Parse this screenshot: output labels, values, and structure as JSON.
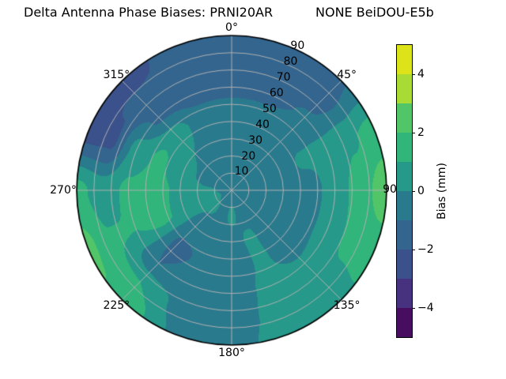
{
  "title": {
    "left": "Delta Antenna Phase Biases: PRNI20AR",
    "right": "NONE BeiDOU-E5b"
  },
  "chart_data": {
    "type": "polar_filled_contour",
    "title": "Delta Antenna Phase Biases: PRNI20AR        NONE BeiDOU-E5b",
    "description_visible": "Polar sky map of antenna phase bias; azimuth clockwise from 0° at top, radial axis 0–90 with gridlines every 10 and spokes every 45°.",
    "levels": [
      -5,
      -4,
      -3,
      -2,
      -1,
      0,
      1,
      2,
      3,
      4,
      5
    ],
    "band_colors_hex": [
      "#470d60",
      "#46327e",
      "#3b518b",
      "#33658e",
      "#2a7a8e",
      "#26998a",
      "#31b57b",
      "#52c569",
      "#a8db34",
      "#dce319"
    ],
    "grid_color": "#b0b0b0",
    "outline_color": "#000000",
    "background_color": "#ffffff",
    "angular_axis": {
      "direction": "clockwise",
      "zero_location": "top",
      "tick_labels": [
        {
          "deg": 0,
          "label": "0°"
        },
        {
          "deg": 45,
          "label": "45°"
        },
        {
          "deg": 90,
          "label": "90"
        },
        {
          "deg": 135,
          "label": "135°"
        },
        {
          "deg": 180,
          "label": "180°"
        },
        {
          "deg": 225,
          "label": "225°"
        },
        {
          "deg": 270,
          "label": "270°"
        },
        {
          "deg": 315,
          "label": "315°"
        }
      ]
    },
    "radial_axis": {
      "max": 90,
      "label_angle_deg": 22.5,
      "ticks": [
        10,
        20,
        30,
        40,
        50,
        60,
        70,
        80,
        90
      ]
    },
    "grid": {
      "azimuths_deg": [
        0,
        22.5,
        45,
        67.5,
        90,
        112.5,
        135,
        157.5,
        180,
        202.5,
        225,
        247.5,
        270,
        292.5,
        315,
        337.5
      ],
      "radii_deg": [
        0,
        15,
        30,
        45,
        60,
        75,
        90
      ],
      "bias_mm": [
        [
          -0.2,
          -0.6,
          -0.7,
          -0.5,
          -1.3,
          -1.7,
          -1.4
        ],
        [
          -0.2,
          -0.6,
          -0.6,
          -0.5,
          -1.3,
          -1.8,
          -1.5
        ],
        [
          -0.2,
          -0.5,
          -0.4,
          -0.3,
          -0.9,
          -1.4,
          -1.1
        ],
        [
          -0.2,
          -0.5,
          -0.3,
          0.1,
          0.4,
          0.9,
          1.4
        ],
        [
          -0.2,
          -0.6,
          -0.8,
          -0.4,
          0.4,
          1.5,
          2.7
        ],
        [
          -0.2,
          -0.5,
          -0.6,
          -0.3,
          0.3,
          1.3,
          1.5
        ],
        [
          -0.2,
          -0.4,
          -0.5,
          -0.3,
          0.1,
          0.6,
          0.8
        ],
        [
          -0.2,
          -0.2,
          0.1,
          0.1,
          0.2,
          0.3,
          0.4
        ],
        [
          -0.2,
          0.1,
          -0.2,
          -0.5,
          -0.4,
          -0.4,
          -0.3
        ],
        [
          -0.2,
          -0.2,
          -0.6,
          -0.9,
          -0.7,
          -0.3,
          -0.1
        ],
        [
          -0.2,
          0.1,
          -0.6,
          -1.2,
          -1.0,
          1.0,
          1.8
        ],
        [
          -0.2,
          0.3,
          0.7,
          1.3,
          1.0,
          1.1,
          2.3
        ],
        [
          -0.2,
          0.1,
          0.7,
          1.5,
          1.2,
          0.5,
          1.3
        ],
        [
          -0.2,
          -0.2,
          0.2,
          1.2,
          0.4,
          -2.2,
          -2.4
        ],
        [
          -0.2,
          -0.2,
          0.0,
          0.6,
          -1.2,
          -1.8,
          -2.5
        ],
        [
          -0.2,
          -0.4,
          -0.6,
          -0.6,
          -1.3,
          -1.8,
          -1.6
        ]
      ]
    },
    "colorbar": {
      "label": "Bias (mm)",
      "vmin": -5,
      "vmax": 5,
      "ticks": [
        {
          "value": 4,
          "label": "4"
        },
        {
          "value": 2,
          "label": "2"
        },
        {
          "value": 0,
          "label": "0"
        },
        {
          "value": -2,
          "label": "−2"
        },
        {
          "value": -4,
          "label": "−4"
        }
      ]
    }
  }
}
